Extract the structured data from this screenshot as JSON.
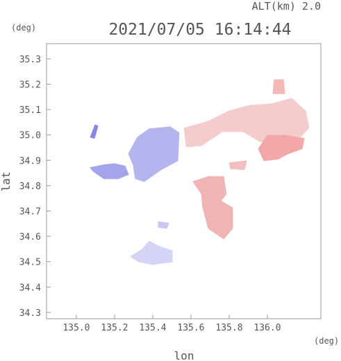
{
  "chart_data": {
    "type": "map",
    "title": "2021/07/05 16:14:44",
    "subtitle": "ALT(km) 2.0",
    "x_label": "lon",
    "y_label": "lat",
    "x_unit": "(deg)",
    "y_unit": "(deg)",
    "xlim": [
      134.844,
      136.28
    ],
    "ylim": [
      34.275,
      35.36
    ],
    "xticks": [
      {
        "value": 135.0,
        "label": "135.0"
      },
      135.2,
      135.4,
      135.6,
      135.8,
      {
        "value": 136.0,
        "label": "136.0"
      }
    ],
    "yticks": [
      35.3,
      35.2,
      35.1,
      {
        "value": 35.0,
        "label": "35.0"
      },
      34.9,
      34.8,
      34.7,
      34.6,
      34.5,
      34.4,
      34.3
    ],
    "series": [
      {
        "color": "#b4b4ee",
        "x": [
          135.32,
          135.382,
          135.491,
          135.538,
          135.531,
          135.444,
          135.356,
          135.309,
          135.298,
          135.273
        ],
        "y": [
          34.991,
          35.024,
          35.032,
          35.008,
          34.898,
          34.863,
          34.816,
          34.827,
          34.882,
          34.926
        ]
      },
      {
        "color": "#a4a4ec",
        "x": [
          135.073,
          135.145,
          135.2,
          135.255,
          135.273,
          135.218,
          135.145,
          135.091
        ],
        "y": [
          34.871,
          34.882,
          34.887,
          34.877,
          34.844,
          34.827,
          34.827,
          34.855
        ]
      },
      {
        "color": "#8888e4",
        "x": [
          135.073,
          135.098,
          135.113,
          135.095
        ],
        "y": [
          34.991,
          35.04,
          35.035,
          34.986
        ]
      },
      {
        "color": "#d4d4f6",
        "x": [
          135.284,
          135.345,
          135.382,
          135.429,
          135.502,
          135.502,
          135.4,
          135.327
        ],
        "y": [
          34.521,
          34.549,
          34.581,
          34.562,
          34.543,
          34.499,
          34.489,
          34.499
        ]
      },
      {
        "color": "#c8c8f4",
        "x": [
          135.429,
          135.484,
          135.473,
          135.429
        ],
        "y": [
          34.658,
          34.652,
          34.631,
          34.636
        ]
      },
      {
        "color": "#f4cccc",
        "x": [
          135.564,
          135.691,
          135.8,
          135.909,
          136.018,
          136.127,
          136.2,
          136.218,
          136.164,
          136.055,
          135.964,
          135.873,
          135.764,
          135.655,
          135.575
        ],
        "y": [
          35.027,
          35.054,
          35.095,
          35.117,
          35.122,
          35.144,
          35.095,
          35.027,
          34.986,
          34.986,
          34.972,
          35.013,
          35.013,
          34.958,
          34.953
        ]
      },
      {
        "color": "#f2a8a8",
        "x": [
          135.953,
          136.0,
          136.091,
          136.193,
          136.182,
          136.109,
          136.055,
          135.982
        ],
        "y": [
          34.945,
          34.999,
          34.999,
          34.986,
          34.945,
          34.926,
          34.904,
          34.898
        ]
      },
      {
        "color": "#f4b8b8",
        "x": [
          136.036,
          136.084,
          136.091,
          136.029
        ],
        "y": [
          35.218,
          35.218,
          35.163,
          35.163
        ]
      },
      {
        "color": "#f0b4b4",
        "x": [
          135.611,
          135.691,
          135.771,
          135.785,
          135.756,
          135.818,
          135.818,
          135.771,
          135.691,
          135.662,
          135.655
        ],
        "y": [
          34.816,
          34.836,
          34.836,
          34.767,
          34.74,
          34.713,
          34.631,
          34.59,
          34.631,
          34.713,
          34.767
        ]
      },
      {
        "color": "#f2c0c0",
        "x": [
          135.8,
          135.891,
          135.88,
          135.807
        ],
        "y": [
          34.89,
          34.898,
          34.863,
          34.866
        ]
      }
    ]
  }
}
